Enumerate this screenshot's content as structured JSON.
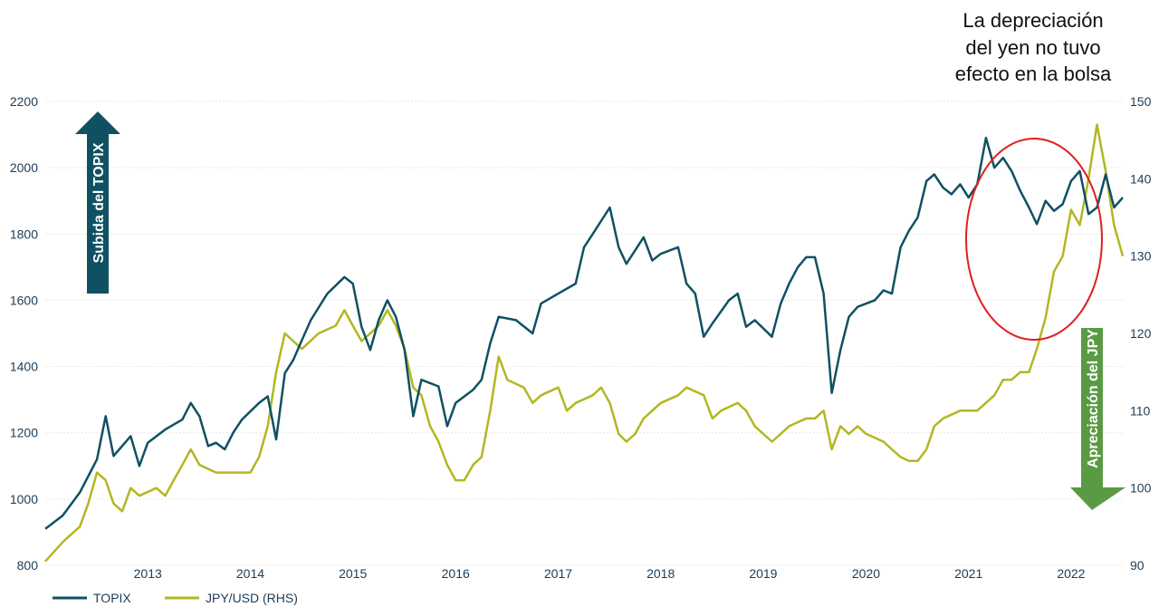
{
  "chart_data": {
    "type": "line",
    "title": "",
    "xlabel": "",
    "ylabel": "",
    "x_ticks": [
      "2013",
      "2014",
      "2015",
      "2016",
      "2017",
      "2018",
      "2019",
      "2020",
      "2021",
      "2022"
    ],
    "y_left": {
      "range": [
        800,
        2200
      ],
      "ticks": [
        "800",
        "1000",
        "1200",
        "1400",
        "1600",
        "1800",
        "2000",
        "2200"
      ]
    },
    "y_right": {
      "range": [
        90,
        150
      ],
      "ticks": [
        "90",
        "100",
        "110",
        "120",
        "130",
        "140",
        "150"
      ]
    },
    "grid": true,
    "legend_position": "bottom-left",
    "series": [
      {
        "name": "TOPIX",
        "axis": "left",
        "color": "#0f5163",
        "points": [
          [
            "2012-07",
            910
          ],
          [
            "2012-09",
            950
          ],
          [
            "2012-11",
            1020
          ],
          [
            "2013-01",
            1120
          ],
          [
            "2013-02",
            1250
          ],
          [
            "2013-03",
            1130
          ],
          [
            "2013-05",
            1190
          ],
          [
            "2013-06",
            1100
          ],
          [
            "2013-07",
            1170
          ],
          [
            "2013-09",
            1210
          ],
          [
            "2013-11",
            1240
          ],
          [
            "2013-12",
            1290
          ],
          [
            "2014-01",
            1250
          ],
          [
            "2014-02",
            1160
          ],
          [
            "2014-03",
            1170
          ],
          [
            "2014-04",
            1150
          ],
          [
            "2014-05",
            1200
          ],
          [
            "2014-06",
            1240
          ],
          [
            "2014-08",
            1290
          ],
          [
            "2014-09",
            1310
          ],
          [
            "2014-10",
            1180
          ],
          [
            "2014-11",
            1380
          ],
          [
            "2014-12",
            1420
          ],
          [
            "2015-01",
            1480
          ],
          [
            "2015-02",
            1540
          ],
          [
            "2015-04",
            1620
          ],
          [
            "2015-06",
            1670
          ],
          [
            "2015-07",
            1650
          ],
          [
            "2015-08",
            1520
          ],
          [
            "2015-09",
            1450
          ],
          [
            "2015-10",
            1540
          ],
          [
            "2015-11",
            1600
          ],
          [
            "2015-12",
            1550
          ],
          [
            "2016-01",
            1450
          ],
          [
            "2016-02",
            1250
          ],
          [
            "2016-03",
            1360
          ],
          [
            "2016-05",
            1340
          ],
          [
            "2016-06",
            1220
          ],
          [
            "2016-07",
            1290
          ],
          [
            "2016-09",
            1330
          ],
          [
            "2016-10",
            1360
          ],
          [
            "2016-11",
            1470
          ],
          [
            "2016-12",
            1550
          ],
          [
            "2017-02",
            1540
          ],
          [
            "2017-04",
            1500
          ],
          [
            "2017-05",
            1590
          ],
          [
            "2017-07",
            1620
          ],
          [
            "2017-09",
            1650
          ],
          [
            "2017-10",
            1760
          ],
          [
            "2017-11",
            1800
          ],
          [
            "2018-01",
            1880
          ],
          [
            "2018-02",
            1760
          ],
          [
            "2018-03",
            1710
          ],
          [
            "2018-05",
            1790
          ],
          [
            "2018-06",
            1720
          ],
          [
            "2018-07",
            1740
          ],
          [
            "2018-09",
            1760
          ],
          [
            "2018-10",
            1650
          ],
          [
            "2018-11",
            1620
          ],
          [
            "2018-12",
            1490
          ],
          [
            "2019-01",
            1530
          ],
          [
            "2019-03",
            1600
          ],
          [
            "2019-04",
            1620
          ],
          [
            "2019-05",
            1520
          ],
          [
            "2019-06",
            1540
          ],
          [
            "2019-08",
            1490
          ],
          [
            "2019-09",
            1590
          ],
          [
            "2019-10",
            1650
          ],
          [
            "2019-11",
            1700
          ],
          [
            "2019-12",
            1730
          ],
          [
            "2020-01",
            1730
          ],
          [
            "2020-02",
            1620
          ],
          [
            "2020-03",
            1320
          ],
          [
            "2020-04",
            1450
          ],
          [
            "2020-05",
            1550
          ],
          [
            "2020-06",
            1580
          ],
          [
            "2020-08",
            1600
          ],
          [
            "2020-09",
            1630
          ],
          [
            "2020-10",
            1620
          ],
          [
            "2020-11",
            1760
          ],
          [
            "2020-12",
            1810
          ],
          [
            "2021-01",
            1850
          ],
          [
            "2021-02",
            1960
          ],
          [
            "2021-03",
            1980
          ],
          [
            "2021-04",
            1940
          ],
          [
            "2021-05",
            1920
          ],
          [
            "2021-06",
            1950
          ],
          [
            "2021-07",
            1910
          ],
          [
            "2021-08",
            1950
          ],
          [
            "2021-09",
            2090
          ],
          [
            "2021-10",
            2000
          ],
          [
            "2021-11",
            2030
          ],
          [
            "2021-12",
            1990
          ],
          [
            "2022-01",
            1930
          ],
          [
            "2022-02",
            1880
          ],
          [
            "2022-03",
            1830
          ],
          [
            "2022-04",
            1900
          ],
          [
            "2022-05",
            1870
          ],
          [
            "2022-06",
            1890
          ],
          [
            "2022-07",
            1960
          ],
          [
            "2022-08",
            1990
          ],
          [
            "2022-09",
            1860
          ],
          [
            "2022-10",
            1880
          ],
          [
            "2022-11",
            1980
          ],
          [
            "2022-12",
            1880
          ],
          [
            "2023-01",
            1910
          ]
        ]
      },
      {
        "name": "JPY/USD (RHS)",
        "axis": "right",
        "color": "#b3b720",
        "points": [
          [
            "2012-07",
            90.5
          ],
          [
            "2012-09",
            93
          ],
          [
            "2012-10",
            94
          ],
          [
            "2012-11",
            95
          ],
          [
            "2012-12",
            98
          ],
          [
            "2013-01",
            102
          ],
          [
            "2013-02",
            101
          ],
          [
            "2013-03",
            98
          ],
          [
            "2013-04",
            97
          ],
          [
            "2013-05",
            100
          ],
          [
            "2013-06",
            99
          ],
          [
            "2013-08",
            100
          ],
          [
            "2013-09",
            99
          ],
          [
            "2013-10",
            101
          ],
          [
            "2013-11",
            103
          ],
          [
            "2013-12",
            105
          ],
          [
            "2014-01",
            103
          ],
          [
            "2014-03",
            102
          ],
          [
            "2014-05",
            102
          ],
          [
            "2014-07",
            102
          ],
          [
            "2014-08",
            104
          ],
          [
            "2014-09",
            108
          ],
          [
            "2014-10",
            115
          ],
          [
            "2014-11",
            120
          ],
          [
            "2014-12",
            119
          ],
          [
            "2015-01",
            118
          ],
          [
            "2015-03",
            120
          ],
          [
            "2015-05",
            121
          ],
          [
            "2015-06",
            123
          ],
          [
            "2015-07",
            121
          ],
          [
            "2015-08",
            119
          ],
          [
            "2015-09",
            120
          ],
          [
            "2015-10",
            121
          ],
          [
            "2015-11",
            123
          ],
          [
            "2015-12",
            121
          ],
          [
            "2016-01",
            118
          ],
          [
            "2016-02",
            113
          ],
          [
            "2016-03",
            112
          ],
          [
            "2016-04",
            108
          ],
          [
            "2016-05",
            106
          ],
          [
            "2016-06",
            103
          ],
          [
            "2016-07",
            101
          ],
          [
            "2016-08",
            101
          ],
          [
            "2016-09",
            103
          ],
          [
            "2016-10",
            104
          ],
          [
            "2016-11",
            110
          ],
          [
            "2016-12",
            117
          ],
          [
            "2017-01",
            114
          ],
          [
            "2017-03",
            113
          ],
          [
            "2017-04",
            111
          ],
          [
            "2017-05",
            112
          ],
          [
            "2017-07",
            113
          ],
          [
            "2017-08",
            110
          ],
          [
            "2017-09",
            111
          ],
          [
            "2017-11",
            112
          ],
          [
            "2017-12",
            113
          ],
          [
            "2018-01",
            111
          ],
          [
            "2018-02",
            107
          ],
          [
            "2018-03",
            106
          ],
          [
            "2018-04",
            107
          ],
          [
            "2018-05",
            109
          ],
          [
            "2018-07",
            111
          ],
          [
            "2018-09",
            112
          ],
          [
            "2018-10",
            113
          ],
          [
            "2018-12",
            112
          ],
          [
            "2019-01",
            109
          ],
          [
            "2019-02",
            110
          ],
          [
            "2019-04",
            111
          ],
          [
            "2019-05",
            110
          ],
          [
            "2019-06",
            108
          ],
          [
            "2019-08",
            106
          ],
          [
            "2019-09",
            107
          ],
          [
            "2019-10",
            108
          ],
          [
            "2019-12",
            109
          ],
          [
            "2020-01",
            109
          ],
          [
            "2020-02",
            110
          ],
          [
            "2020-03",
            105
          ],
          [
            "2020-04",
            108
          ],
          [
            "2020-05",
            107
          ],
          [
            "2020-06",
            108
          ],
          [
            "2020-07",
            107
          ],
          [
            "2020-09",
            106
          ],
          [
            "2020-10",
            105
          ],
          [
            "2020-11",
            104
          ],
          [
            "2020-12",
            103.5
          ],
          [
            "2021-01",
            103.5
          ],
          [
            "2021-02",
            105
          ],
          [
            "2021-03",
            108
          ],
          [
            "2021-04",
            109
          ],
          [
            "2021-06",
            110
          ],
          [
            "2021-07",
            110
          ],
          [
            "2021-08",
            110
          ],
          [
            "2021-10",
            112
          ],
          [
            "2021-11",
            114
          ],
          [
            "2021-12",
            114
          ],
          [
            "2022-01",
            115
          ],
          [
            "2022-02",
            115
          ],
          [
            "2022-03",
            118
          ],
          [
            "2022-04",
            122
          ],
          [
            "2022-05",
            128
          ],
          [
            "2022-06",
            130
          ],
          [
            "2022-07",
            136
          ],
          [
            "2022-08",
            134
          ],
          [
            "2022-09",
            140
          ],
          [
            "2022-10",
            147
          ],
          [
            "2022-11",
            141
          ],
          [
            "2022-12",
            134
          ],
          [
            "2023-01",
            130
          ]
        ]
      }
    ],
    "annotations": {
      "text_lines": [
        "La depreciación",
        "del yen no tuvo",
        "efecto en la bolsa"
      ],
      "up_arrow_label": "Subida del TOPIX",
      "up_arrow_color": "#0f5163",
      "down_arrow_label": "Apreciación del JPY",
      "down_arrow_color": "#5b9a45",
      "circle_color": "#e02020"
    }
  }
}
